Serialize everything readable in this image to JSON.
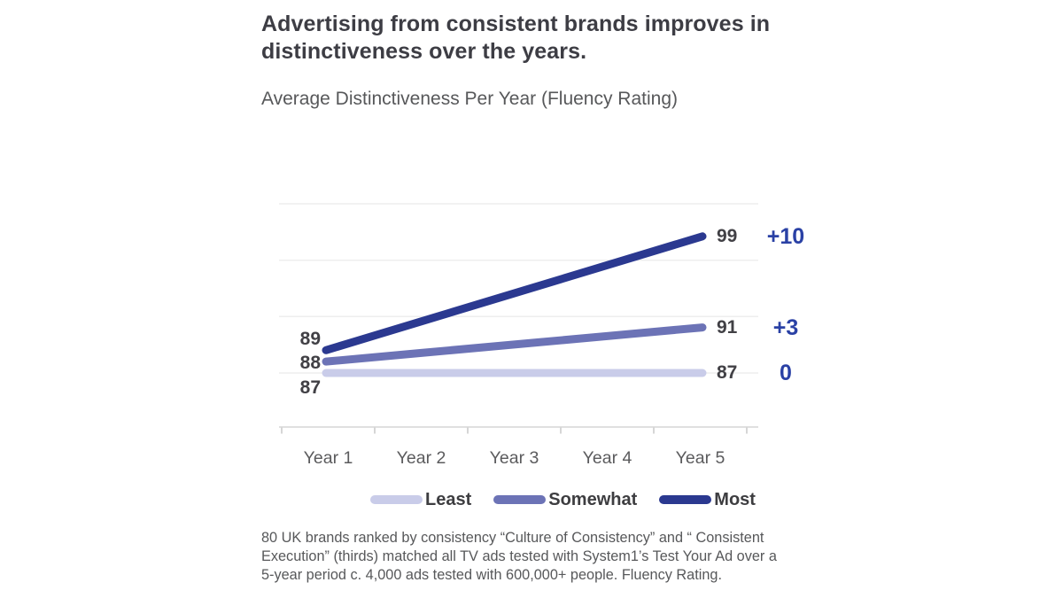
{
  "header": {
    "title": "Advertising from consistent brands improves in distinctiveness over the years.",
    "title_lines": [
      "Advertising from consistent brands improves in",
      "distinctiveness over the years."
    ],
    "subtitle": "Average Distinctiveness Per Year (Fluency Rating)"
  },
  "chart_data": {
    "type": "line",
    "title": "Average Distinctiveness Per Year (Fluency Rating)",
    "categories": [
      "Year 1",
      "Year 2",
      "Year 3",
      "Year 4",
      "Year 5"
    ],
    "series": [
      {
        "name": "Least",
        "values": [
          87,
          87,
          87,
          87,
          87
        ],
        "start_label": "87",
        "end_label": "87",
        "delta": "0",
        "color": "#c9cce9"
      },
      {
        "name": "Somewhat",
        "values": [
          88,
          88.75,
          89.5,
          90.25,
          91
        ],
        "start_label": "88",
        "end_label": "91",
        "delta": "+3",
        "color": "#6c73b6"
      },
      {
        "name": "Most",
        "values": [
          89,
          91.5,
          94,
          96.5,
          99
        ],
        "start_label": "89",
        "end_label": "99",
        "delta": "+10",
        "color": "#2b3990"
      }
    ],
    "xlabel": "",
    "ylabel": "",
    "ylim": [
      85,
      103
    ],
    "grid": true,
    "gridline_count": 4,
    "y_axis_tick_labels_hidden": true,
    "legend_position": "bottom"
  },
  "colors": {
    "delta_text": "#2a41a5",
    "value_label_text": "#414045",
    "gridline": "#eeeeee",
    "axis_line": "#d6d6d6"
  },
  "footnote": {
    "text": "80 UK brands ranked by consistency “Culture of Consistency” and “ Consistent Execution” (thirds) matched all TV ads tested with System1’s Test Your Ad over a 5-year period c. 4,000 ads tested with 600,000+ people. Fluency Rating.",
    "lines": [
      "80 UK brands ranked by consistency “Culture of Consistency” and “ Consistent",
      "Execution” (thirds) matched all TV ads tested with System1’s Test Your Ad over a",
      "5-year period c. 4,000 ads tested with 600,000+ people. Fluency Rating."
    ]
  }
}
